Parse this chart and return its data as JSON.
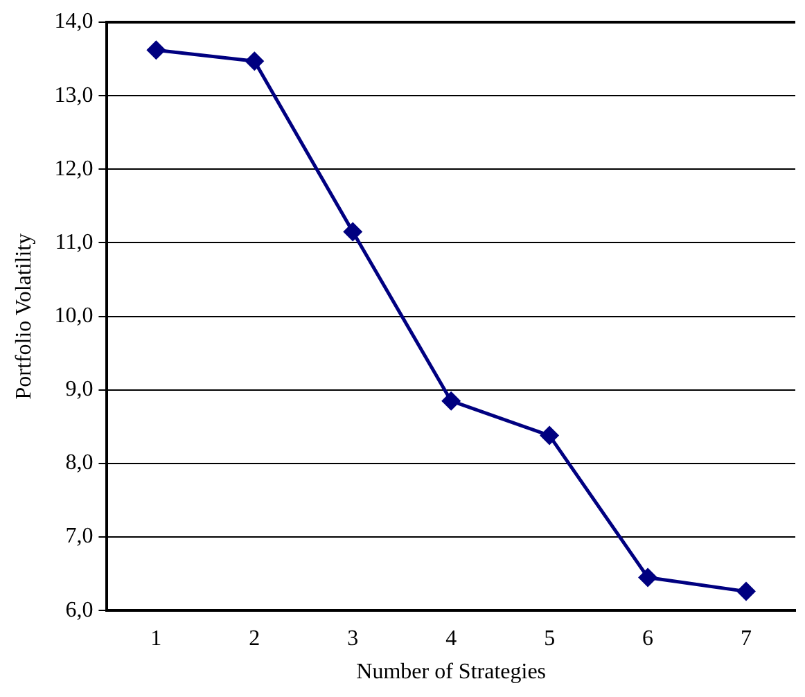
{
  "chart_data": {
    "type": "line",
    "categories": [
      "1",
      "2",
      "3",
      "4",
      "5",
      "6",
      "7"
    ],
    "series": [
      {
        "color": "#000080",
        "values": [
          13.62,
          13.47,
          11.15,
          8.85,
          8.38,
          6.45,
          6.26
        ]
      }
    ],
    "xlabel": "Number of Strategies",
    "ylabel": "Portfolio Volatility",
    "ylim": [
      6,
      14
    ],
    "yticks": [
      {
        "value": 6,
        "label": "6,0"
      },
      {
        "value": 7,
        "label": "7,0"
      },
      {
        "value": 8,
        "label": "8,0"
      },
      {
        "value": 9,
        "label": "9,0"
      },
      {
        "value": 10,
        "label": "10,0"
      },
      {
        "value": 11,
        "label": "11,0"
      },
      {
        "value": 12,
        "label": "12,0"
      },
      {
        "value": 13,
        "label": "13,0"
      },
      {
        "value": 14,
        "label": "14,0"
      }
    ],
    "grid": "y",
    "legend": false,
    "marker": "diamond",
    "line_style": "solid"
  }
}
